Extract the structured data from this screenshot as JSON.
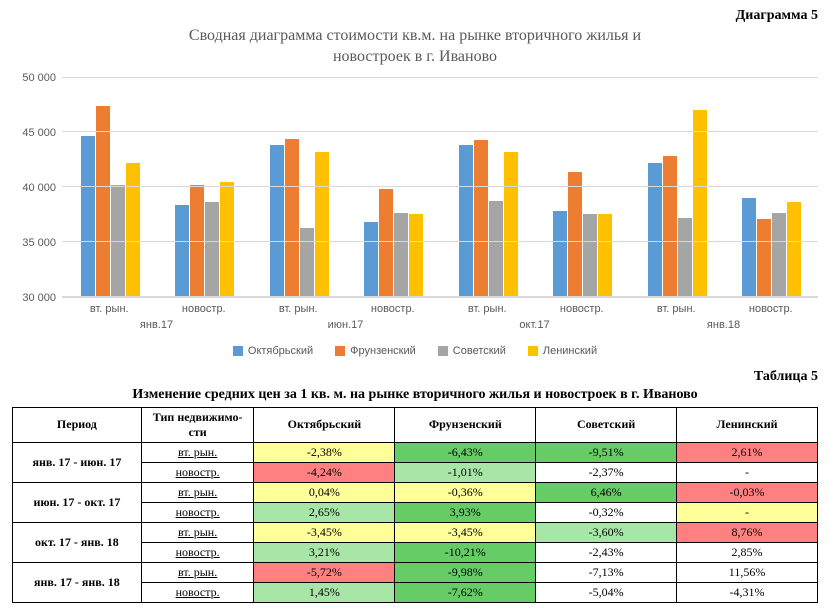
{
  "diagram_label": "Диаграмма 5",
  "chart": {
    "type": "bar",
    "title_line1": "Сводная диаграмма стоимости кв.м. на рынке вторичного жилья и",
    "title_line2": "новостроек в г. Иваново",
    "title_fontsize": 16,
    "title_color": "#595959",
    "background_color": "#ffffff",
    "grid_color": "#d9d9d9",
    "label_color": "#595959",
    "label_fontsize": 11,
    "ylim": [
      30000,
      50000
    ],
    "ytick_step": 5000,
    "ytick_labels": [
      "30 000",
      "35 000",
      "40 000",
      "45 000",
      "50 000"
    ],
    "periods": [
      "янв.17",
      "июн.17",
      "окт.17",
      "янв.18"
    ],
    "sub_categories": [
      "вт. рын.",
      "новостр."
    ],
    "series": [
      {
        "name": "Октябрьский",
        "color": "#5b9bd5"
      },
      {
        "name": "Фрунзенский",
        "color": "#ed7d31"
      },
      {
        "name": "Советский",
        "color": "#a5a5a5"
      },
      {
        "name": "Ленинский",
        "color": "#ffc000"
      }
    ],
    "values": [
      [
        [
          44700,
          47400,
          40200,
          42200
        ],
        [
          38400,
          40200,
          38600,
          40500
        ]
      ],
      [
        [
          43800,
          44400,
          36300,
          43200
        ],
        [
          36800,
          39800,
          37600,
          37500
        ]
      ],
      [
        [
          43800,
          44300,
          38700,
          43200
        ],
        [
          37800,
          41400,
          37500,
          37500
        ]
      ],
      [
        [
          42200,
          42800,
          37200,
          47000
        ],
        [
          39000,
          37100,
          37600,
          38600
        ]
      ]
    ],
    "bar_max_width": 14
  },
  "table_label": "Таблица 5",
  "table": {
    "title": "Изменение средних цен за 1 кв. м. на рынке вторичного жилья и новостроек в г. Иваново",
    "headers": [
      "Период",
      "Тип недвижимо-\nсти",
      "Октябрьский",
      "Фрунзенский",
      "Советский",
      "Ленинский"
    ],
    "period_labels": [
      "янв. 17 - июн. 17",
      "июн. 17 - окт. 17",
      "окт. 17 - янв. 18",
      "янв. 17 - янв. 18"
    ],
    "type_labels": [
      "вт. рын.",
      "новостр."
    ],
    "cells": [
      [
        [
          {
            "v": "-2,38%",
            "c": "#ffff99"
          },
          {
            "v": "-6,43%",
            "c": "#66cc66"
          },
          {
            "v": "-9,51%",
            "c": "#66cc66"
          },
          {
            "v": "2,61%",
            "c": "#ff8080"
          }
        ],
        [
          {
            "v": "-4,24%",
            "c": "#ff8080"
          },
          {
            "v": "-1,01%",
            "c": "#a8e6a8"
          },
          {
            "v": "-2,37%",
            "c": ""
          },
          {
            "v": "-",
            "c": ""
          }
        ]
      ],
      [
        [
          {
            "v": "0,04%",
            "c": "#ffff99"
          },
          {
            "v": "-0,36%",
            "c": "#ffff99"
          },
          {
            "v": "6,46%",
            "c": "#66cc66"
          },
          {
            "v": "-0,03%",
            "c": "#ff8080"
          }
        ],
        [
          {
            "v": "2,65%",
            "c": "#a8e6a8"
          },
          {
            "v": "3,93%",
            "c": "#66cc66"
          },
          {
            "v": "-0,32%",
            "c": ""
          },
          {
            "v": "-",
            "c": "#ffff99"
          }
        ]
      ],
      [
        [
          {
            "v": "-3,45%",
            "c": "#ffff99"
          },
          {
            "v": "-3,45%",
            "c": "#ffff99"
          },
          {
            "v": "-3,60%",
            "c": "#a8e6a8"
          },
          {
            "v": "8,76%",
            "c": "#ff8080"
          }
        ],
        [
          {
            "v": "3,21%",
            "c": "#a8e6a8"
          },
          {
            "v": "-10,21%",
            "c": "#66cc66"
          },
          {
            "v": "-2,43%",
            "c": ""
          },
          {
            "v": "2,85%",
            "c": ""
          }
        ]
      ],
      [
        [
          {
            "v": "-5,72%",
            "c": "#ff8080"
          },
          {
            "v": "-9,98%",
            "c": "#66cc66"
          },
          {
            "v": "-7,13%",
            "c": ""
          },
          {
            "v": "11,56%",
            "c": ""
          }
        ],
        [
          {
            "v": "1,45%",
            "c": "#a8e6a8"
          },
          {
            "v": "-7,62%",
            "c": "#66cc66"
          },
          {
            "v": "-5,04%",
            "c": ""
          },
          {
            "v": "-4,31%",
            "c": ""
          }
        ]
      ]
    ],
    "col_widths_pct": [
      16,
      14,
      17.5,
      17.5,
      17.5,
      17.5
    ]
  }
}
